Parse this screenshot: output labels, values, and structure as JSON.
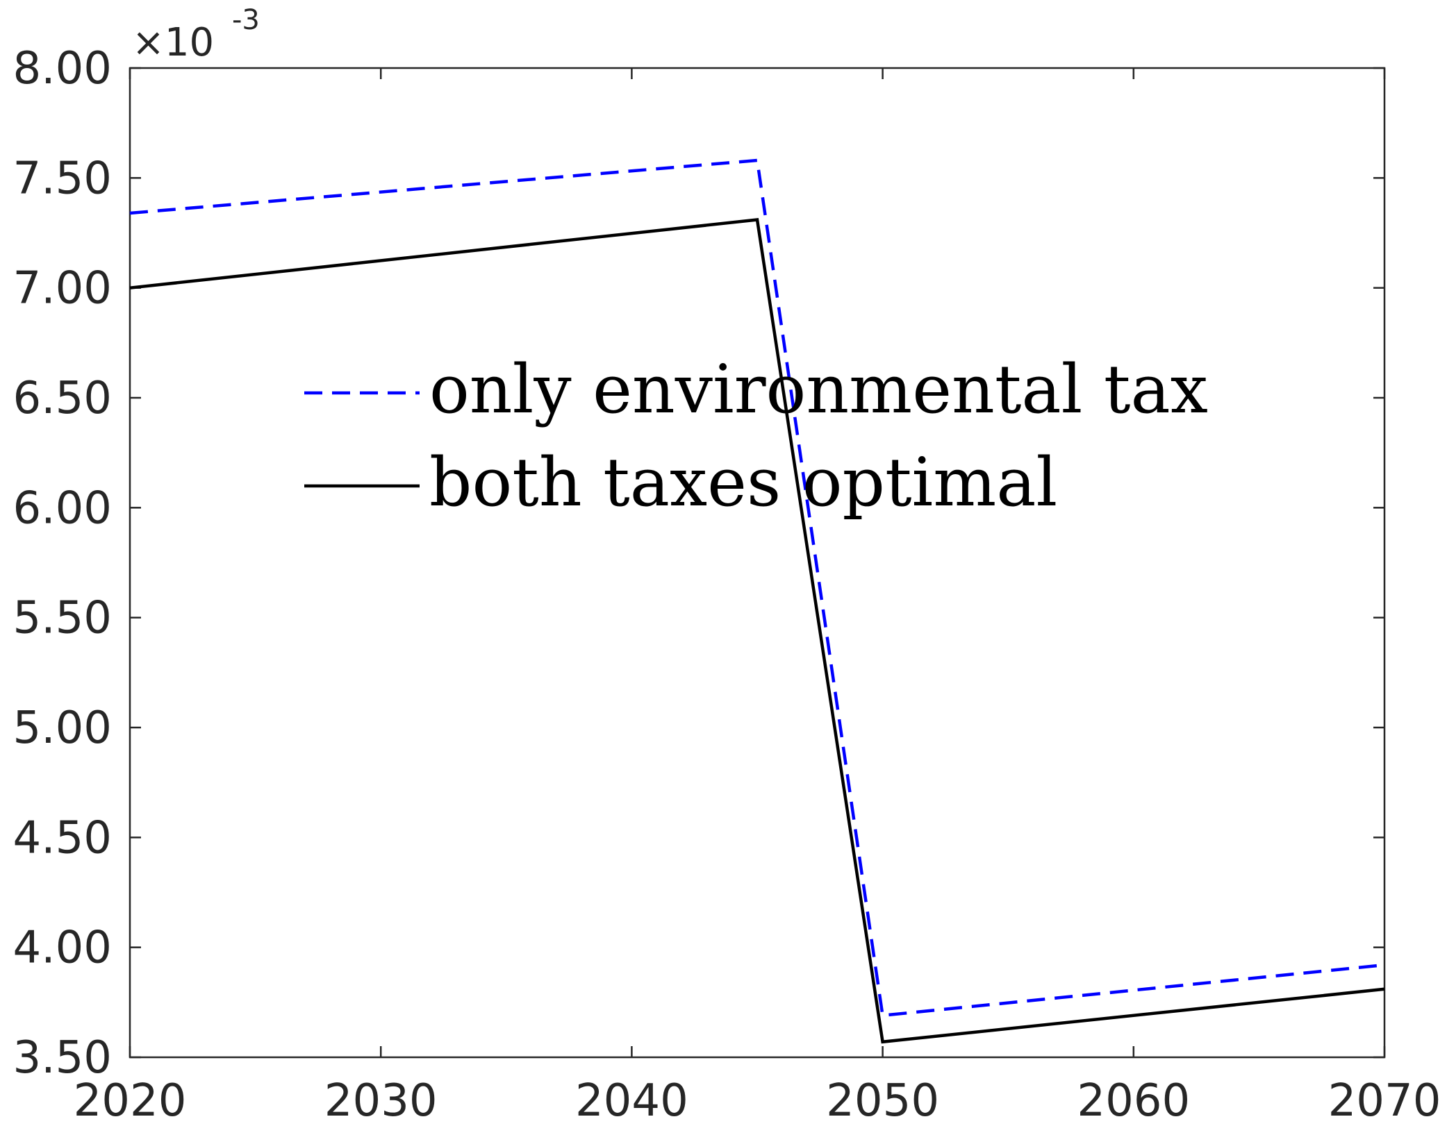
{
  "chart_data": {
    "type": "line",
    "title": "",
    "xlabel": "",
    "ylabel": "",
    "xlim": [
      2020,
      2070
    ],
    "ylim": [
      3.5,
      8.0
    ],
    "y_exponent_label": {
      "base": "×10",
      "exponent": "-3"
    },
    "xticks": [
      2020,
      2030,
      2040,
      2050,
      2060,
      2070
    ],
    "xtick_labels": [
      "2020",
      "2030",
      "2040",
      "2050",
      "2060",
      "2070"
    ],
    "yticks": [
      3.5,
      4.0,
      4.5,
      5.0,
      5.5,
      6.0,
      6.5,
      7.0,
      7.5,
      8.0
    ],
    "ytick_labels": [
      "3.50",
      "4.00",
      "4.50",
      "5.00",
      "5.50",
      "6.00",
      "6.50",
      "7.00",
      "7.50",
      "8.00"
    ],
    "grid": false,
    "legend_position": "upper-center",
    "series": [
      {
        "name": "only environmental tax",
        "color": "#0000ff",
        "style": "dashed",
        "x": [
          2020,
          2045,
          2050,
          2070
        ],
        "y": [
          7.34,
          7.58,
          3.69,
          3.92
        ]
      },
      {
        "name": "both taxes optimal",
        "color": "#000000",
        "style": "solid",
        "x": [
          2020,
          2045,
          2050,
          2070
        ],
        "y": [
          7.0,
          7.31,
          3.57,
          3.81
        ]
      }
    ]
  }
}
